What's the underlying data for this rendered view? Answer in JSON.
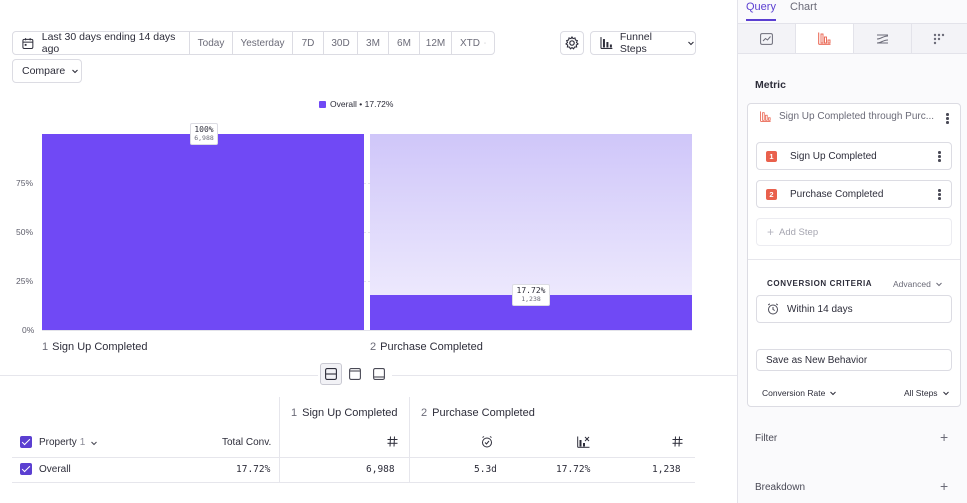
{
  "toolbar": {
    "date_range": "Last 30 days ending 14 days ago",
    "presets": [
      "Today",
      "Yesterday",
      "7D",
      "30D",
      "3M",
      "6M",
      "12M",
      "XTD"
    ],
    "compare_label": "Compare",
    "chart_type_label": "Funnel Steps"
  },
  "chart_data": {
    "type": "bar",
    "legend": "Overall • 17.72%",
    "categories": [
      "Sign Up Completed",
      "Purchase Completed"
    ],
    "step_numbers": [
      "1",
      "2"
    ],
    "series": [
      {
        "name": "Overall",
        "values": [
          100,
          17.72
        ],
        "counts": [
          "6,988",
          "1,238"
        ],
        "pct_labels": [
          "100%",
          "17.72%"
        ]
      }
    ],
    "y_ticks": [
      "0%",
      "25%",
      "50%",
      "75%"
    ],
    "ylim": [
      0,
      100
    ],
    "colors": {
      "bar": "#7049f5",
      "faded": "#cfc6f9"
    }
  },
  "table": {
    "group_header": {
      "step1_num": "1",
      "step1": "Sign Up Completed",
      "step2_num": "2",
      "step2": "Purchase Completed"
    },
    "property_label": "Property",
    "property_count": "1",
    "total_conv_label": "Total Conv.",
    "row": {
      "label": "Overall",
      "total_conv": "17.72%",
      "step1_count": "6,988",
      "step2_time": "5.3d",
      "step2_rate": "17.72%",
      "step2_count": "1,238"
    }
  },
  "panel": {
    "tabs": [
      "Query",
      "Chart"
    ],
    "metric_title": "Metric",
    "metric_name": "Sign Up Completed through Purc...",
    "steps": [
      {
        "num": "1",
        "label": "Sign Up Completed"
      },
      {
        "num": "2",
        "label": "Purchase Completed"
      }
    ],
    "add_step": "Add Step",
    "criteria_title": "CONVERSION CRITERIA",
    "advanced_label": "Advanced",
    "within_label": "Within 14 days",
    "save_label": "Save as New Behavior",
    "conversion_rate_label": "Conversion Rate",
    "all_steps_label": "All Steps",
    "filter_label": "Filter",
    "breakdown_label": "Breakdown"
  }
}
